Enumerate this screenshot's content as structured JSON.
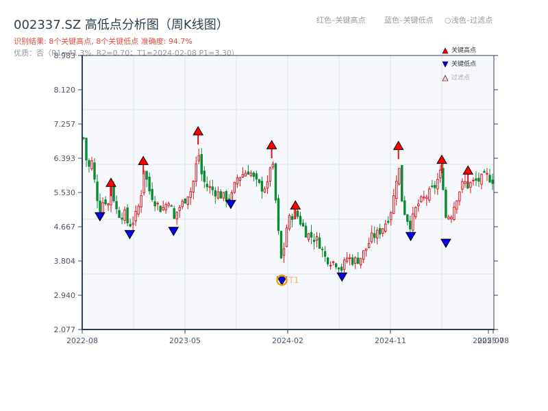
{
  "header": {
    "title": "002337.SZ 高低点分析图（周K线图）",
    "result_line": "识别结果: 8个关键高点, 8个关键低点  准确度: 94.7%",
    "quality_line": "优质：否（R1=41.3%, R2=0.70；T1=2024-02-08 P1=3.30）",
    "hint_red": "红色–关键高点",
    "hint_blue": "蓝色–关键低点",
    "hint_light": "○浅色–过滤点"
  },
  "legend": {
    "high": "关键高点",
    "low": "关键低点",
    "filtered": "过滤点"
  },
  "colors": {
    "up": "#e0101a",
    "down": "#0a8a34",
    "high_marker": "#ff0000",
    "low_marker": "#0000ee",
    "t1_ring": "#f39c12",
    "plot_bg": "#f6f8fb",
    "grid": "#e2e6ea",
    "axis": "#2c3e50"
  },
  "chart_data": {
    "type": "candlestick",
    "title": "002337.SZ 高低点分析图（周K线图）",
    "xlabel": "",
    "ylabel": "",
    "ylim": [
      2.077,
      8.983
    ],
    "yticks": [
      2.077,
      2.94,
      3.804,
      4.667,
      5.53,
      6.393,
      7.257,
      8.12,
      8.983
    ],
    "xticks": [
      "2022-08",
      "2023-05",
      "2024-02",
      "2024-11",
      "2025-07",
      "2025-08"
    ],
    "grid": true,
    "key_highs": [
      {
        "x_frac": 0.067,
        "price": 5.75
      },
      {
        "x_frac": 0.146,
        "price": 6.3
      },
      {
        "x_frac": 0.28,
        "price": 7.05
      },
      {
        "x_frac": 0.46,
        "price": 6.7
      },
      {
        "x_frac": 0.518,
        "price": 5.18
      },
      {
        "x_frac": 0.77,
        "price": 6.68
      },
      {
        "x_frac": 0.876,
        "price": 6.33
      },
      {
        "x_frac": 0.94,
        "price": 6.06
      }
    ],
    "key_lows": [
      {
        "x_frac": 0.04,
        "price": 4.92
      },
      {
        "x_frac": 0.113,
        "price": 4.47
      },
      {
        "x_frac": 0.22,
        "price": 4.55
      },
      {
        "x_frac": 0.36,
        "price": 5.23
      },
      {
        "x_frac": 0.485,
        "price": 3.3,
        "label": "T1"
      },
      {
        "x_frac": 0.632,
        "price": 3.4
      },
      {
        "x_frac": 0.8,
        "price": 4.42
      },
      {
        "x_frac": 0.886,
        "price": 4.25
      }
    ],
    "close_path": [
      [
        0.0,
        6.9
      ],
      [
        0.01,
        6.1
      ],
      [
        0.02,
        6.3
      ],
      [
        0.03,
        5.6
      ],
      [
        0.04,
        5.05
      ],
      [
        0.05,
        5.4
      ],
      [
        0.06,
        5.2
      ],
      [
        0.067,
        5.7
      ],
      [
        0.08,
        5.1
      ],
      [
        0.09,
        4.95
      ],
      [
        0.1,
        5.0
      ],
      [
        0.11,
        4.7
      ],
      [
        0.12,
        4.8
      ],
      [
        0.13,
        5.0
      ],
      [
        0.14,
        5.4
      ],
      [
        0.146,
        6.2
      ],
      [
        0.16,
        5.6
      ],
      [
        0.175,
        5.3
      ],
      [
        0.19,
        5.1
      ],
      [
        0.2,
        5.2
      ],
      [
        0.21,
        5.4
      ],
      [
        0.22,
        4.8
      ],
      [
        0.23,
        5.1
      ],
      [
        0.245,
        5.3
      ],
      [
        0.255,
        5.5
      ],
      [
        0.265,
        5.6
      ],
      [
        0.275,
        6.2
      ],
      [
        0.28,
        6.6
      ],
      [
        0.29,
        5.9
      ],
      [
        0.3,
        5.7
      ],
      [
        0.315,
        5.6
      ],
      [
        0.33,
        5.5
      ],
      [
        0.345,
        5.4
      ],
      [
        0.36,
        5.35
      ],
      [
        0.375,
        5.9
      ],
      [
        0.39,
        6.0
      ],
      [
        0.405,
        6.1
      ],
      [
        0.42,
        5.8
      ],
      [
        0.435,
        5.65
      ],
      [
        0.45,
        5.7
      ],
      [
        0.46,
        6.5
      ],
      [
        0.47,
        5.3
      ],
      [
        0.478,
        4.3
      ],
      [
        0.485,
        3.7
      ],
      [
        0.495,
        4.6
      ],
      [
        0.505,
        4.9
      ],
      [
        0.518,
        5.05
      ],
      [
        0.53,
        4.8
      ],
      [
        0.545,
        4.5
      ],
      [
        0.56,
        4.4
      ],
      [
        0.575,
        4.3
      ],
      [
        0.59,
        3.9
      ],
      [
        0.605,
        3.8
      ],
      [
        0.62,
        3.75
      ],
      [
        0.632,
        3.6
      ],
      [
        0.645,
        3.9
      ],
      [
        0.66,
        3.8
      ],
      [
        0.675,
        3.85
      ],
      [
        0.69,
        4.1
      ],
      [
        0.705,
        4.4
      ],
      [
        0.72,
        4.5
      ],
      [
        0.735,
        4.7
      ],
      [
        0.75,
        5.0
      ],
      [
        0.76,
        5.5
      ],
      [
        0.77,
        6.3
      ],
      [
        0.78,
        5.2
      ],
      [
        0.79,
        4.9
      ],
      [
        0.8,
        4.7
      ],
      [
        0.815,
        5.2
      ],
      [
        0.83,
        5.35
      ],
      [
        0.845,
        5.5
      ],
      [
        0.86,
        5.7
      ],
      [
        0.876,
        6.1
      ],
      [
        0.886,
        4.9
      ],
      [
        0.9,
        5.0
      ],
      [
        0.915,
        5.5
      ],
      [
        0.93,
        5.8
      ],
      [
        0.94,
        5.7
      ],
      [
        0.955,
        5.8
      ],
      [
        0.97,
        5.85
      ],
      [
        0.985,
        5.95
      ],
      [
        1.0,
        5.85
      ]
    ]
  }
}
